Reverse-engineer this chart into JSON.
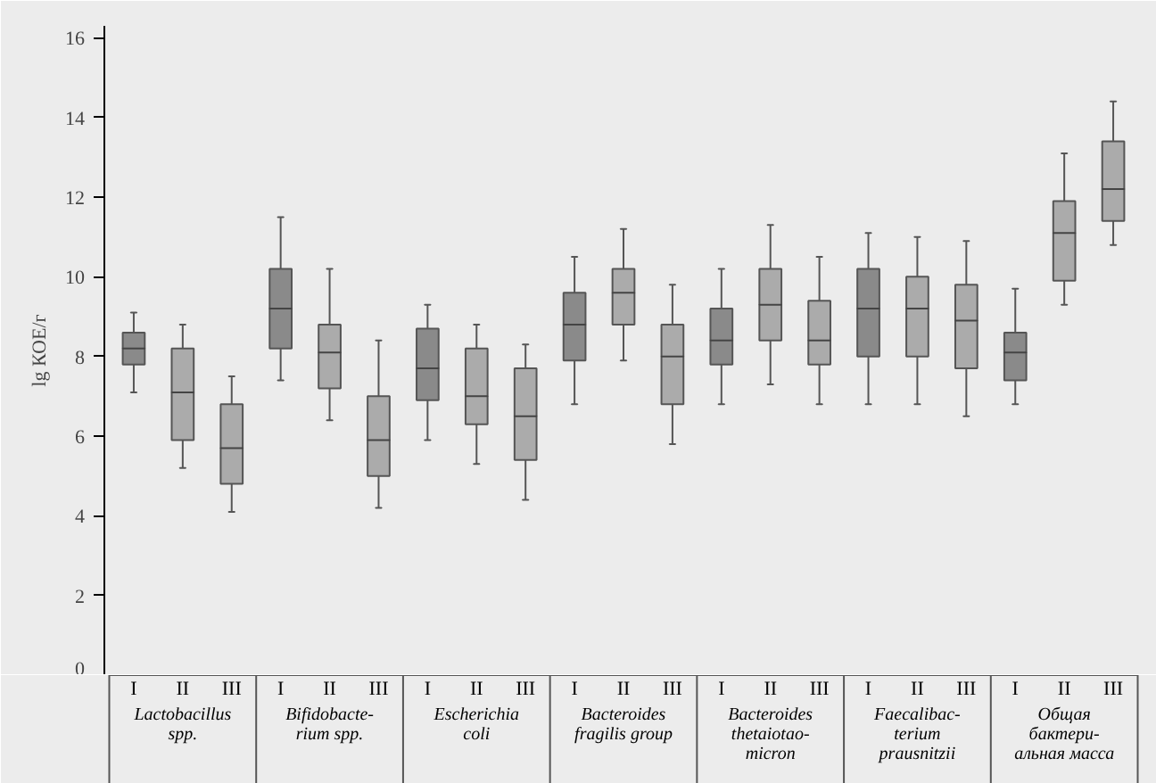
{
  "chart_data": {
    "type": "box",
    "ylabel": "lg КОЕ/г",
    "categories": [
      "I",
      "II",
      "III",
      "I",
      "II",
      "III",
      "I",
      "II",
      "III",
      "I",
      "II",
      "III",
      "I",
      "II",
      "III",
      "I",
      "II",
      "III",
      "I",
      "II",
      "III"
    ],
    "boxes": [
      {
        "low": 7.1,
        "q1": 7.8,
        "median": 8.2,
        "q3": 8.6,
        "high": 9.1
      },
      {
        "low": 5.2,
        "q1": 5.9,
        "median": 7.1,
        "q3": 8.2,
        "high": 8.8
      },
      {
        "low": 4.1,
        "q1": 4.8,
        "median": 5.7,
        "q3": 6.8,
        "high": 7.5
      },
      {
        "low": 7.4,
        "q1": 8.2,
        "median": 9.2,
        "q3": 10.2,
        "high": 11.5
      },
      {
        "low": 6.4,
        "q1": 7.2,
        "median": 8.1,
        "q3": 8.8,
        "high": 10.2
      },
      {
        "low": 4.2,
        "q1": 5.0,
        "median": 5.9,
        "q3": 7.0,
        "high": 8.4
      },
      {
        "low": 5.9,
        "q1": 6.9,
        "median": 7.7,
        "q3": 8.7,
        "high": 9.3
      },
      {
        "low": 5.3,
        "q1": 6.3,
        "median": 7.0,
        "q3": 8.2,
        "high": 8.8
      },
      {
        "low": 4.4,
        "q1": 5.4,
        "median": 6.5,
        "q3": 7.7,
        "high": 8.3
      },
      {
        "low": 6.8,
        "q1": 7.9,
        "median": 8.8,
        "q3": 9.6,
        "high": 10.5
      },
      {
        "low": 7.9,
        "q1": 8.8,
        "median": 9.6,
        "q3": 10.2,
        "high": 11.2
      },
      {
        "low": 5.8,
        "q1": 6.8,
        "median": 8.0,
        "q3": 8.8,
        "high": 9.8
      },
      {
        "low": 6.8,
        "q1": 7.8,
        "median": 8.4,
        "q3": 9.2,
        "high": 10.2
      },
      {
        "low": 7.3,
        "q1": 8.4,
        "median": 9.3,
        "q3": 10.2,
        "high": 11.3
      },
      {
        "low": 6.8,
        "q1": 7.8,
        "median": 8.4,
        "q3": 9.4,
        "high": 10.5
      },
      {
        "low": 6.8,
        "q1": 8.0,
        "median": 9.2,
        "q3": 10.2,
        "high": 11.1
      },
      {
        "low": 6.8,
        "q1": 8.0,
        "median": 9.2,
        "q3": 10.0,
        "high": 11.0
      },
      {
        "low": 6.5,
        "q1": 7.7,
        "median": 8.9,
        "q3": 9.8,
        "high": 10.9
      },
      {
        "low": 6.8,
        "q1": 7.4,
        "median": 8.1,
        "q3": 8.6,
        "high": 9.7
      },
      {
        "low": 9.3,
        "q1": 9.9,
        "median": 11.1,
        "q3": 11.9,
        "high": 13.1
      },
      {
        "low": 10.8,
        "q1": 11.4,
        "median": 12.2,
        "q3": 13.4,
        "high": 14.4
      }
    ],
    "colors": [
      "#8a8a8a",
      "#ababab",
      "#ababab",
      "#8a8a8a",
      "#ababab",
      "#ababab",
      "#8a8a8a",
      "#ababab",
      "#ababab",
      "#8a8a8a",
      "#ababab",
      "#ababab",
      "#8a8a8a",
      "#ababab",
      "#ababab",
      "#8a8a8a",
      "#ababab",
      "#ababab",
      "#8a8a8a",
      "#ababab",
      "#ababab"
    ],
    "annotations": [
      "Lactobacillus\nspp.",
      "Bifidobacte-\nrium spp.",
      "Escherichia\ncoli",
      "Bacteroides\nfragilis group",
      "Bacteroides\nthetaiotao-\nmicron",
      "Faecalibac-\nterium\nprausnitzii",
      "Общая\nбактери-\nальная масса"
    ],
    "ylim": [
      0,
      16.3
    ],
    "yticks": [
      0,
      2,
      4,
      6,
      8,
      10,
      12,
      14,
      16
    ],
    "grid": false
  }
}
